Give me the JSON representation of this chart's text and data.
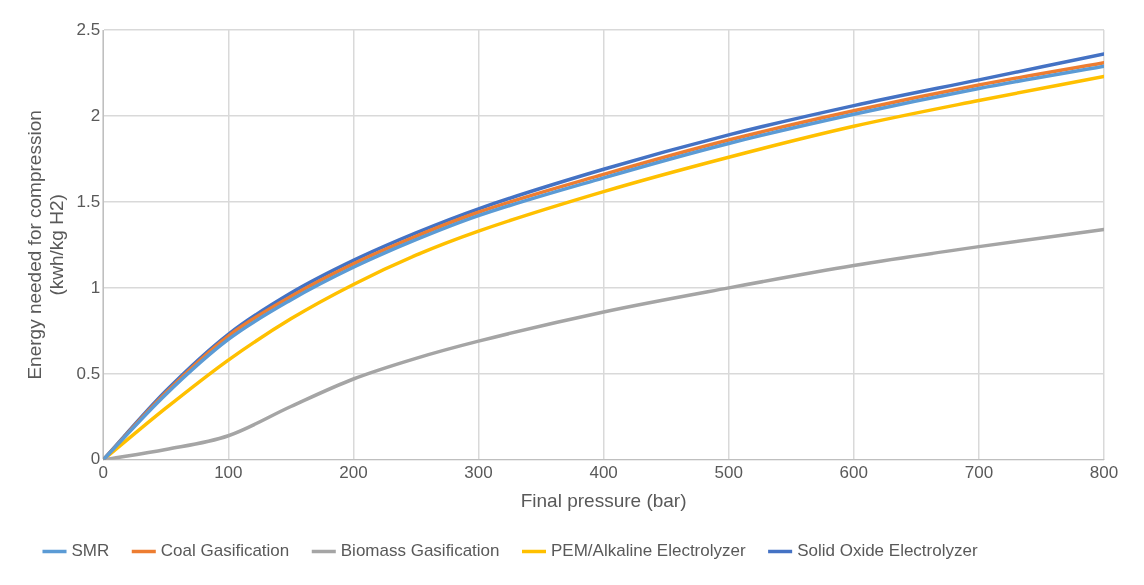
{
  "chart_data": {
    "type": "line",
    "xlabel": "Final pressure (bar)",
    "ylabel": "Energy needed for compression (kwh/kg H2)",
    "x": [
      0,
      50,
      100,
      150,
      200,
      250,
      300,
      400,
      500,
      600,
      700,
      800
    ],
    "xlim": [
      0,
      800
    ],
    "xticks": [
      0,
      100,
      200,
      300,
      400,
      500,
      600,
      700,
      800
    ],
    "ylim": [
      0,
      2.5
    ],
    "yticks": [
      0,
      0.5,
      1,
      1.5,
      2,
      2.5
    ],
    "grid": true,
    "legend": "bottom",
    "marker": "none",
    "line_style": "solid",
    "series": [
      {
        "name": "SMR",
        "color": "#5b9bd5",
        "values": [
          0,
          0.38,
          0.7,
          0.93,
          1.12,
          1.28,
          1.42,
          1.64,
          1.84,
          2.01,
          2.16,
          2.29
        ]
      },
      {
        "name": "Coal Gasification",
        "color": "#ed7d31",
        "values": [
          0,
          0.39,
          0.72,
          0.95,
          1.14,
          1.3,
          1.44,
          1.66,
          1.86,
          2.03,
          2.18,
          2.31
        ]
      },
      {
        "name": "Biomass Gasification",
        "color": "#a5a5a5",
        "values": [
          0,
          0.06,
          0.14,
          0.31,
          0.47,
          0.59,
          0.69,
          0.86,
          1.0,
          1.13,
          1.24,
          1.34
        ]
      },
      {
        "name": "PEM/Alkaline Electrolyzer",
        "color": "#ffc000",
        "values": [
          0,
          0.3,
          0.58,
          0.82,
          1.02,
          1.19,
          1.33,
          1.56,
          1.76,
          1.94,
          2.09,
          2.23
        ]
      },
      {
        "name": "Solid Oxide Electrolyzer",
        "color": "#4472c4",
        "values": [
          0,
          0.4,
          0.73,
          0.97,
          1.16,
          1.32,
          1.46,
          1.69,
          1.89,
          2.06,
          2.21,
          2.36
        ]
      }
    ]
  }
}
